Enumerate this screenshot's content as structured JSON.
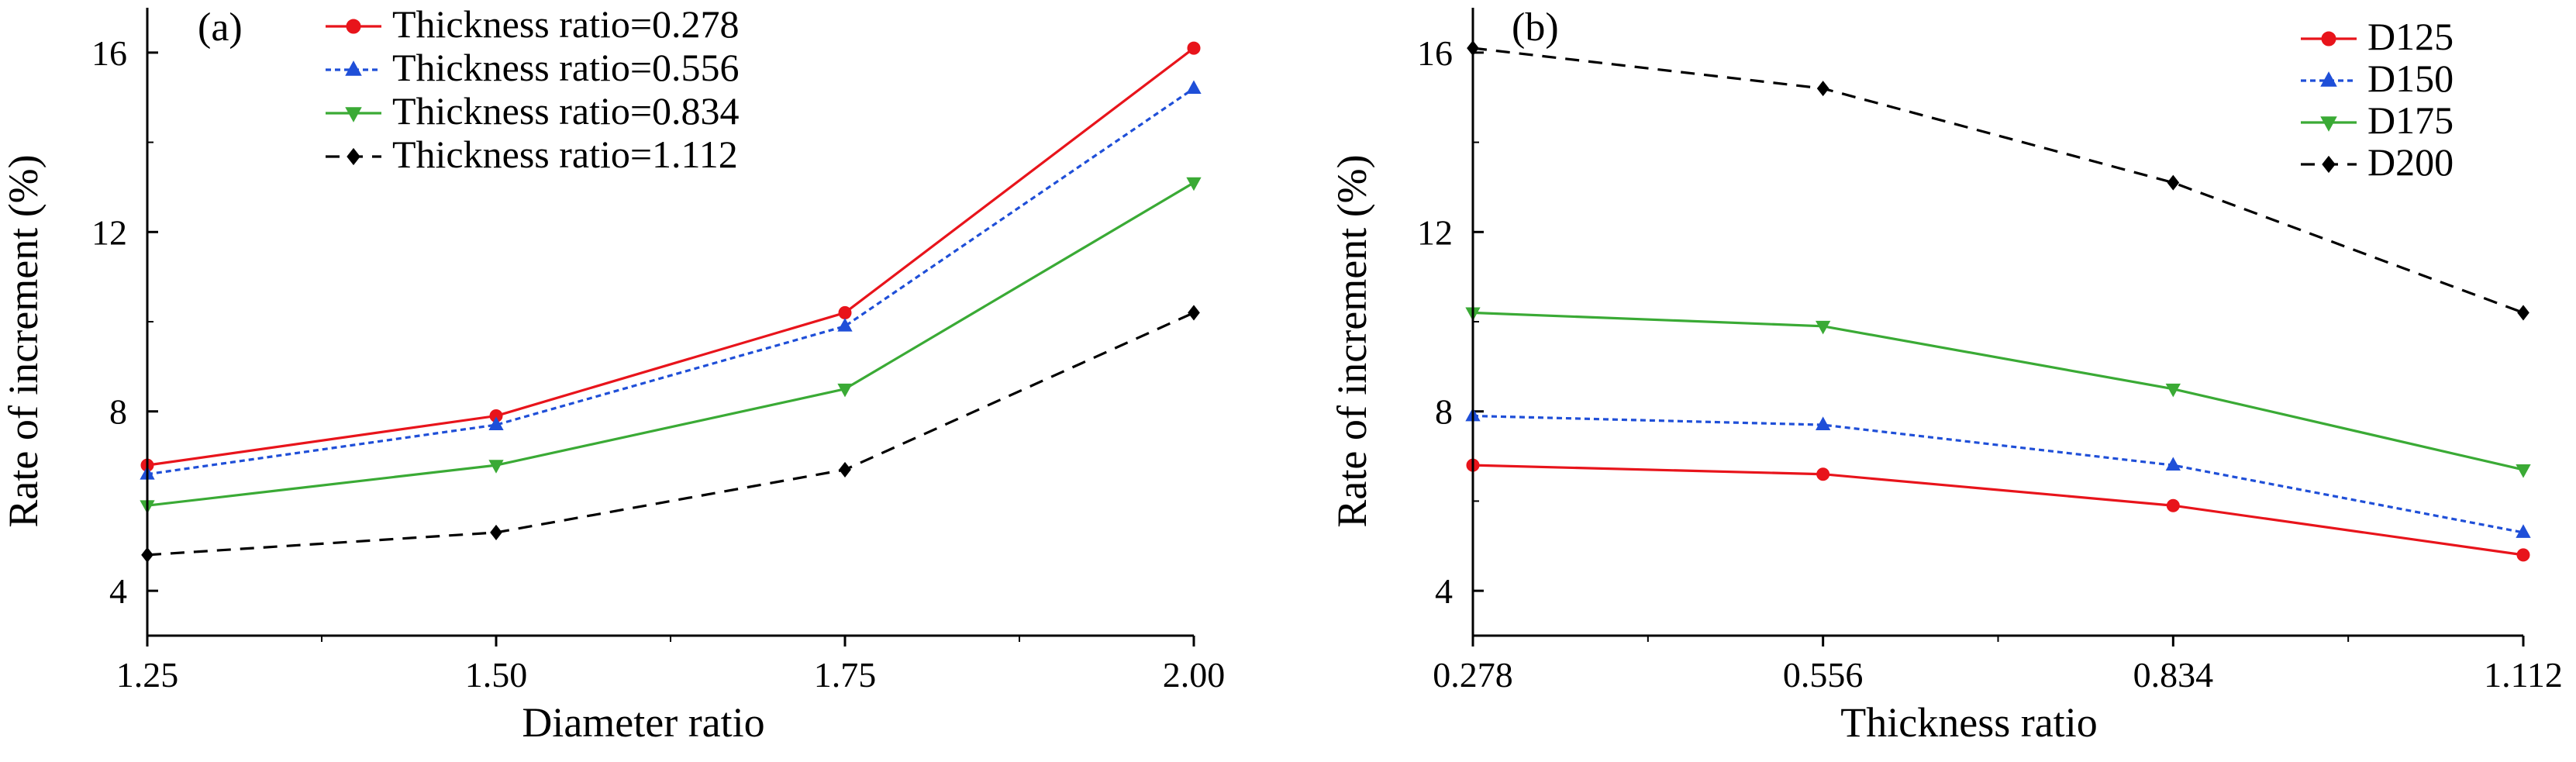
{
  "chart_data": [
    {
      "type": "line",
      "panel_label": "(a)",
      "xlabel": "Diameter ratio",
      "ylabel": "Rate of increment (%)",
      "categories": [
        "1.25",
        "1.50",
        "1.75",
        "2.00"
      ],
      "x": [
        1.25,
        1.5,
        1.75,
        2.0
      ],
      "xlim": [
        1.25,
        2.0
      ],
      "ylim": [
        3,
        17
      ],
      "yticks": [
        "4",
        "8",
        "12",
        "16"
      ],
      "grid": false,
      "legend_position": "top-center",
      "series": [
        {
          "name": "Thickness ratio=0.278",
          "color": "#e8141b",
          "marker": "circle",
          "line": "solid",
          "values": [
            6.8,
            7.9,
            10.2,
            16.1
          ]
        },
        {
          "name": "Thickness ratio=0.556",
          "color": "#1f4fd8",
          "marker": "triangle-up",
          "line": "dotted",
          "values": [
            6.6,
            7.7,
            9.9,
            15.2
          ]
        },
        {
          "name": "Thickness ratio=0.834",
          "color": "#3aaa35",
          "marker": "triangle-down",
          "line": "solid",
          "values": [
            5.9,
            6.8,
            8.5,
            13.1
          ]
        },
        {
          "name": "Thickness ratio=1.112",
          "color": "#000000",
          "marker": "diamond",
          "line": "dashed",
          "values": [
            4.8,
            5.3,
            6.7,
            10.2
          ]
        }
      ]
    },
    {
      "type": "line",
      "panel_label": "(b)",
      "xlabel": "Thickness ratio",
      "ylabel": "Rate of increment (%)",
      "categories": [
        "0.278",
        "0.556",
        "0.834",
        "1.112"
      ],
      "x": [
        0.278,
        0.556,
        0.834,
        1.112
      ],
      "xlim": [
        0.278,
        1.112
      ],
      "ylim": [
        3,
        17
      ],
      "yticks": [
        "4",
        "8",
        "12",
        "16"
      ],
      "grid": false,
      "legend_position": "top-right",
      "series": [
        {
          "name": "D125",
          "color": "#e8141b",
          "marker": "circle",
          "line": "solid",
          "values": [
            6.8,
            6.6,
            5.9,
            4.8
          ]
        },
        {
          "name": "D150",
          "color": "#1f4fd8",
          "marker": "triangle-up",
          "line": "dotted",
          "values": [
            7.9,
            7.7,
            6.8,
            5.3
          ]
        },
        {
          "name": "D175",
          "color": "#3aaa35",
          "marker": "triangle-down",
          "line": "solid",
          "values": [
            10.2,
            9.9,
            8.5,
            6.7
          ]
        },
        {
          "name": "D200",
          "color": "#000000",
          "marker": "diamond",
          "line": "dashed",
          "values": [
            16.1,
            15.2,
            13.1,
            10.2
          ]
        }
      ]
    }
  ]
}
